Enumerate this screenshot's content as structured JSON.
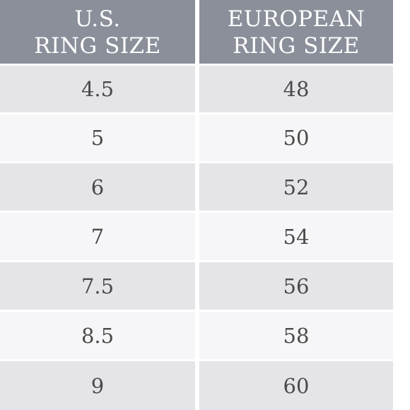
{
  "table": {
    "headers": [
      [
        "U.S.",
        "RING SIZE"
      ],
      [
        "EUROPEAN",
        "RING SIZE"
      ]
    ],
    "rows": [
      [
        "4.5",
        "48"
      ],
      [
        "5",
        "50"
      ],
      [
        "6",
        "52"
      ],
      [
        "7",
        "54"
      ],
      [
        "7.5",
        "56"
      ],
      [
        "8.5",
        "58"
      ],
      [
        "9",
        "60"
      ]
    ]
  },
  "colors": {
    "header_background": "#8b8f9a",
    "header_text": "#ffffff",
    "row_shaded": "#e5e5e9",
    "row_plain": "#f6f6f8",
    "cell_text": "#4a4a4a"
  }
}
